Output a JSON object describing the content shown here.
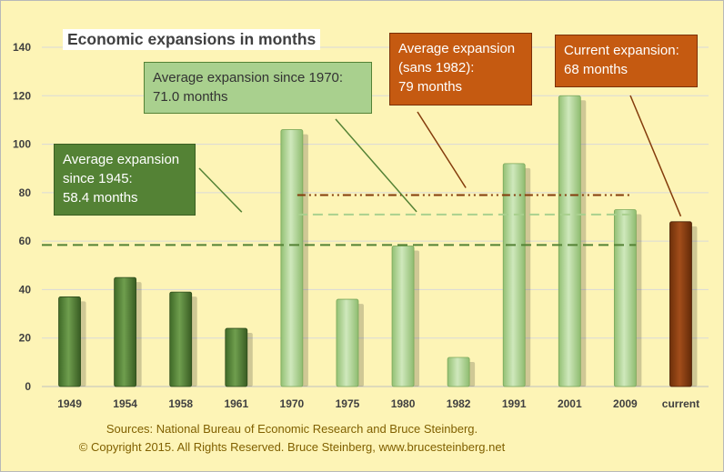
{
  "chart_data": {
    "type": "bar",
    "title": "Economic expansions in months",
    "categories": [
      "1949",
      "1954",
      "1958",
      "1961",
      "1970",
      "1975",
      "1980",
      "1982",
      "1991",
      "2001",
      "2009",
      "current"
    ],
    "values": [
      37,
      45,
      39,
      24,
      106,
      36,
      58,
      12,
      92,
      120,
      73,
      68
    ],
    "bar_groups": [
      "pre1970",
      "pre1970",
      "pre1970",
      "pre1970",
      "since1970",
      "since1970",
      "since1970",
      "since1970",
      "since1970",
      "since1970",
      "since1970",
      "current"
    ],
    "colors": {
      "pre1970": "#548235",
      "since1970": "#a9d08e",
      "current": "#843c0c",
      "since1945_line": "#548235",
      "since1970_line": "#a9d08e",
      "sans1982_line": "#843c0c"
    },
    "ylim": [
      0,
      140
    ],
    "yticks": [
      "0",
      "20",
      "40",
      "60",
      "80",
      "100",
      "120",
      "140"
    ],
    "grid": true,
    "reference_lines": [
      {
        "name": "since1945",
        "value": 58.4,
        "style": "dashed",
        "from_category": "1949",
        "to_category": "2009"
      },
      {
        "name": "since1970",
        "value": 71.0,
        "style": "dashed",
        "from_category": "1970",
        "to_category": "2009"
      },
      {
        "name": "sans1982",
        "value": 79,
        "style": "dash-dot-dot",
        "from_category": "1970",
        "to_category": "2009"
      }
    ]
  },
  "annotations": {
    "since1945": {
      "lines": [
        "Average expansion",
        "since 1945:",
        "58.4 months"
      ]
    },
    "since1970": {
      "lines": [
        "Average expansion since 1970:",
        "71.0 months"
      ]
    },
    "sans1982": {
      "lines": [
        "Average expansion",
        "(sans 1982):",
        "79 months"
      ]
    },
    "current": {
      "lines": [
        "Current expansion:",
        "68 months"
      ]
    }
  },
  "footer": {
    "source": "Sources: National Bureau of Economic Research and Bruce Steinberg.",
    "copyright": "© Copyright 2015. All Rights Reserved. Bruce Steinberg, www.brucesteinberg.net"
  }
}
